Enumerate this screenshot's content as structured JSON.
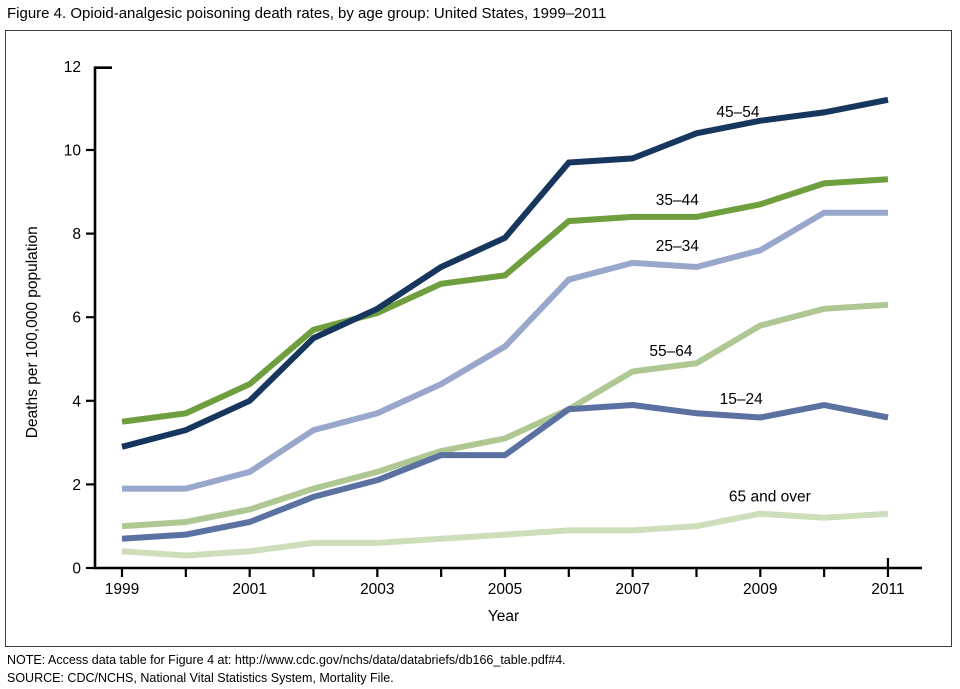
{
  "title": "Figure 4. Opioid-analgesic poisoning death rates, by age group: United States, 1999–2011",
  "notes": {
    "note": "NOTE: Access data table for Figure 4 at: http://www.cdc.gov/nchs/data/databriefs/db166_table.pdf#4.",
    "source": "SOURCE: CDC/NCHS, National Vital Statistics System, Mortality File."
  },
  "chart_data": {
    "type": "line",
    "xlabel": "Year",
    "ylabel": "Deaths per 100,000 population",
    "x": [
      1999,
      2000,
      2001,
      2002,
      2003,
      2004,
      2005,
      2006,
      2007,
      2008,
      2009,
      2010,
      2011
    ],
    "x_labeled_ticks": [
      1999,
      2001,
      2003,
      2005,
      2007,
      2009,
      2011
    ],
    "ylim": [
      0,
      12
    ],
    "y_ticks": [
      0,
      2,
      4,
      6,
      8,
      10,
      12
    ],
    "grid": false,
    "legend_position": "inline-labels",
    "axis_color": "#000000",
    "series": [
      {
        "name": "65 and over",
        "color": "#cfdeba",
        "values": [
          0.4,
          0.3,
          0.4,
          0.6,
          0.6,
          0.7,
          0.8,
          0.9,
          0.9,
          1.0,
          1.3,
          1.2,
          1.3
        ],
        "label_anchor": {
          "year": 2009.15,
          "value": 1.72
        }
      },
      {
        "name": "55–64",
        "color": "#afc893",
        "values": [
          1.0,
          1.1,
          1.4,
          1.9,
          2.3,
          2.8,
          3.1,
          3.8,
          4.7,
          4.9,
          5.8,
          6.2,
          6.3
        ],
        "label_anchor": {
          "year": 2007.6,
          "value": 5.2
        }
      },
      {
        "name": "25–34",
        "color": "#99a7cc",
        "values": [
          1.9,
          1.9,
          2.3,
          3.3,
          3.7,
          4.4,
          5.3,
          6.9,
          7.3,
          7.2,
          7.6,
          8.5,
          8.5
        ],
        "label_anchor": {
          "year": 2007.7,
          "value": 7.72
        }
      },
      {
        "name": "15–24",
        "color": "#5b71a2",
        "values": [
          0.7,
          0.8,
          1.1,
          1.7,
          2.1,
          2.7,
          2.7,
          3.8,
          3.9,
          3.7,
          3.6,
          3.9,
          3.6
        ],
        "label_anchor": {
          "year": 2008.7,
          "value": 4.05
        }
      },
      {
        "name": "35–44",
        "color": "#6f9e3f",
        "values": [
          3.5,
          3.7,
          4.4,
          5.7,
          6.1,
          6.8,
          7.0,
          8.3,
          8.4,
          8.4,
          8.7,
          9.2,
          9.3
        ],
        "label_anchor": {
          "year": 2007.7,
          "value": 8.82
        }
      },
      {
        "name": "45–54",
        "color": "#17365d",
        "values": [
          2.9,
          3.3,
          4.0,
          5.5,
          6.2,
          7.2,
          7.9,
          9.7,
          9.8,
          10.4,
          10.7,
          10.9,
          11.2
        ],
        "label_anchor": {
          "year": 2008.65,
          "value": 10.92
        }
      }
    ]
  }
}
